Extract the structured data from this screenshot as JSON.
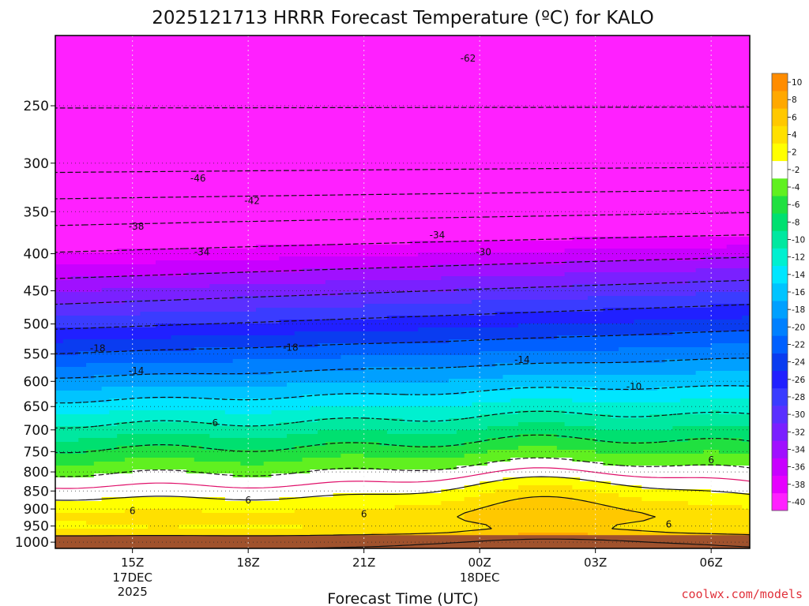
{
  "chart_data": {
    "type": "heatmap",
    "title": "2025121713 HRRR Forecast Temperature (ºC) for KALO",
    "xlabel": "Forecast Time (UTC)",
    "ylabel": "",
    "x_ticks": [
      {
        "hour": 15,
        "label": "15Z",
        "sub1": "17DEC",
        "sub2": "2025"
      },
      {
        "hour": 18,
        "label": "18Z",
        "sub1": "",
        "sub2": ""
      },
      {
        "hour": 21,
        "label": "21Z",
        "sub1": "",
        "sub2": ""
      },
      {
        "hour": 24,
        "label": "00Z",
        "sub1": "18DEC",
        "sub2": ""
      },
      {
        "hour": 27,
        "label": "03Z",
        "sub1": "",
        "sub2": ""
      },
      {
        "hour": 30,
        "label": "06Z",
        "sub1": "",
        "sub2": ""
      }
    ],
    "xlim_hours": [
      13,
      31
    ],
    "y_pressure_ticks": [
      250,
      300,
      350,
      400,
      450,
      500,
      550,
      600,
      650,
      700,
      750,
      800,
      850,
      900,
      950,
      1000
    ],
    "ylim_hpa": [
      200,
      1020
    ],
    "y_scale": "log-pressure",
    "surface_pressure_hpa": 978,
    "colorbar": {
      "levels": [
        -40,
        -38,
        -36,
        -34,
        -32,
        -30,
        -28,
        -26,
        -24,
        -22,
        -20,
        -18,
        -16,
        -14,
        -12,
        -10,
        -8,
        -6,
        -4,
        -2,
        2,
        4,
        6,
        8,
        10
      ],
      "colors": [
        "#ff20ff",
        "#e600ff",
        "#c800ff",
        "#a010ff",
        "#7a20ff",
        "#5a30ff",
        "#3a3cff",
        "#2020ff",
        "#0a3cf0",
        "#0060ff",
        "#0080ff",
        "#00a0ff",
        "#00c4ff",
        "#00e6ff",
        "#00f0d0",
        "#00e8a0",
        "#00e070",
        "#20e040",
        "#60f020",
        "#ffffff",
        "#ffff00",
        "#ffe000",
        "#ffc800",
        "#ffa800",
        "#ff8c00"
      ]
    },
    "contour_labels": [
      {
        "value": -62,
        "hour": 23.7,
        "hpa": 215
      },
      {
        "value": -46,
        "hour": 16.7,
        "hpa": 315
      },
      {
        "value": -42,
        "hour": 18.1,
        "hpa": 338
      },
      {
        "value": -38,
        "hour": 15.1,
        "hpa": 367
      },
      {
        "value": -34,
        "hour": 16.8,
        "hpa": 398
      },
      {
        "value": -34,
        "hour": 22.9,
        "hpa": 377
      },
      {
        "value": -30,
        "hour": 24.1,
        "hpa": 398
      },
      {
        "value": -18,
        "hour": 14.1,
        "hpa": 540
      },
      {
        "value": -18,
        "hour": 19.1,
        "hpa": 539
      },
      {
        "value": -14,
        "hour": 15.1,
        "hpa": 580
      },
      {
        "value": -14,
        "hour": 25.1,
        "hpa": 560
      },
      {
        "value": -10,
        "hour": 28.0,
        "hpa": 610
      },
      {
        "value": -6,
        "hour": 17.1,
        "hpa": 685
      },
      {
        "value": 6,
        "hour": 30.0,
        "hpa": 770
      },
      {
        "value": 6,
        "hour": 18.0,
        "hpa": 875
      },
      {
        "value": 6,
        "hour": 15.0,
        "hpa": 905
      },
      {
        "value": 6,
        "hour": 21.0,
        "hpa": 915
      },
      {
        "value": 6,
        "hour": 28.9,
        "hpa": 945
      }
    ]
  },
  "credit": "coolwx.com/models"
}
